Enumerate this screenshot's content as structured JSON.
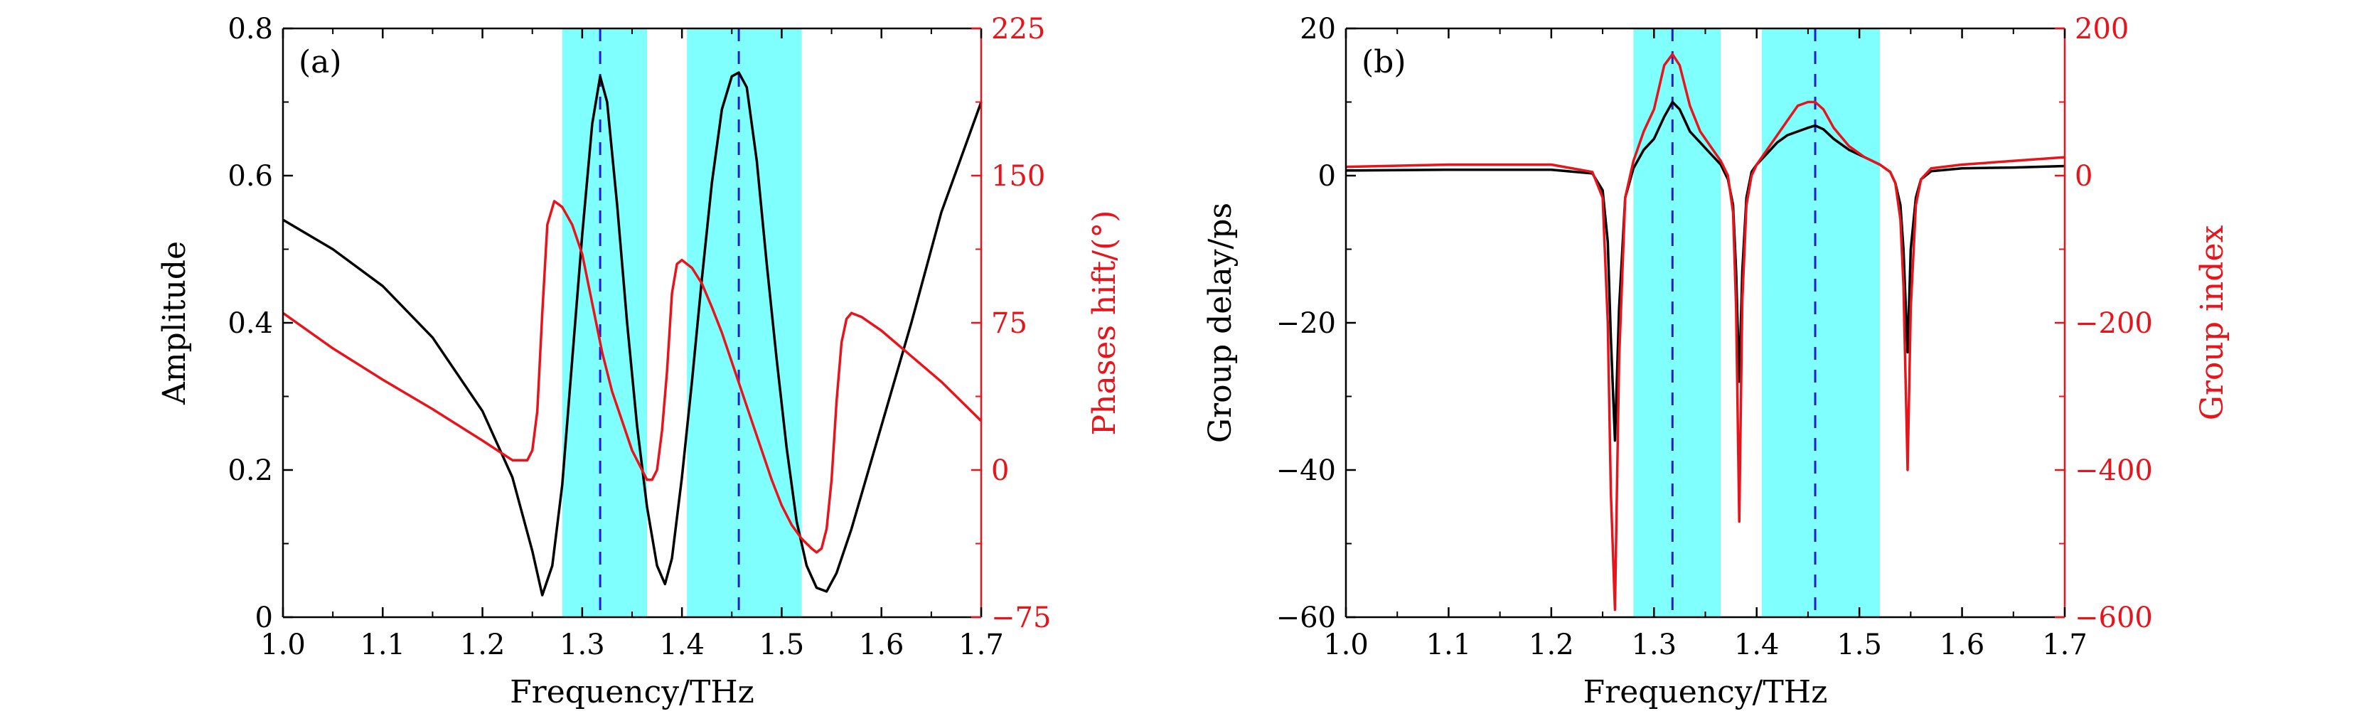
{
  "chart_data": [
    {
      "type": "line",
      "panel_label": "(a)",
      "xlabel": "Frequency/THz",
      "ylabel": "Amplitude",
      "y2label": "Phases hift/(°)",
      "xlim": [
        1.0,
        1.7
      ],
      "ylim": [
        0,
        0.8
      ],
      "y2lim": [
        -75,
        225
      ],
      "xticks": [
        "1.0",
        "1.1",
        "1.2",
        "1.3",
        "1.4",
        "1.5",
        "1.6",
        "1.7"
      ],
      "yticks": [
        "0",
        "0.2",
        "0.4",
        "0.6",
        "0.8"
      ],
      "y2ticks": [
        "−75",
        "0",
        "75",
        "150",
        "225"
      ],
      "bands": [
        [
          1.28,
          1.365
        ],
        [
          1.405,
          1.52
        ]
      ],
      "vlines": [
        1.318,
        1.457
      ],
      "colors": {
        "left": "#000000",
        "right": "#e8141b",
        "band": "#80ffff",
        "vline": "#1f1fd0"
      },
      "series": [
        {
          "axis": "left",
          "color": "#000000",
          "x": [
            1.0,
            1.05,
            1.1,
            1.15,
            1.2,
            1.23,
            1.25,
            1.26,
            1.27,
            1.28,
            1.29,
            1.3,
            1.31,
            1.318,
            1.325,
            1.335,
            1.345,
            1.355,
            1.365,
            1.375,
            1.383,
            1.39,
            1.4,
            1.41,
            1.42,
            1.43,
            1.44,
            1.45,
            1.457,
            1.465,
            1.475,
            1.485,
            1.495,
            1.505,
            1.515,
            1.525,
            1.535,
            1.545,
            1.555,
            1.57,
            1.6,
            1.63,
            1.66,
            1.7
          ],
          "y": [
            0.54,
            0.5,
            0.45,
            0.38,
            0.28,
            0.19,
            0.09,
            0.03,
            0.07,
            0.18,
            0.35,
            0.52,
            0.67,
            0.735,
            0.7,
            0.56,
            0.4,
            0.26,
            0.15,
            0.07,
            0.045,
            0.08,
            0.19,
            0.32,
            0.46,
            0.59,
            0.69,
            0.735,
            0.74,
            0.72,
            0.62,
            0.48,
            0.35,
            0.23,
            0.13,
            0.07,
            0.04,
            0.035,
            0.06,
            0.12,
            0.26,
            0.4,
            0.55,
            0.7
          ]
        },
        {
          "axis": "right",
          "color": "#e8141b",
          "x": [
            1.0,
            1.05,
            1.1,
            1.15,
            1.2,
            1.23,
            1.245,
            1.25,
            1.255,
            1.26,
            1.265,
            1.272,
            1.28,
            1.29,
            1.3,
            1.31,
            1.32,
            1.33,
            1.34,
            1.35,
            1.36,
            1.365,
            1.37,
            1.375,
            1.38,
            1.385,
            1.39,
            1.395,
            1.4,
            1.41,
            1.42,
            1.43,
            1.44,
            1.45,
            1.46,
            1.47,
            1.48,
            1.49,
            1.5,
            1.51,
            1.52,
            1.53,
            1.535,
            1.54,
            1.545,
            1.55,
            1.555,
            1.56,
            1.565,
            1.57,
            1.58,
            1.6,
            1.63,
            1.66,
            1.7
          ],
          "y": [
            80,
            62,
            46,
            31,
            15,
            5,
            5,
            10,
            30,
            80,
            125,
            137,
            134,
            125,
            110,
            85,
            60,
            40,
            25,
            10,
            0,
            -5,
            -5,
            0,
            20,
            50,
            90,
            105,
            107,
            103,
            95,
            83,
            70,
            55,
            40,
            25,
            10,
            -5,
            -18,
            -28,
            -35,
            -40,
            -42,
            -40,
            -30,
            -5,
            35,
            65,
            77,
            80,
            78,
            71,
            58,
            45,
            25
          ]
        }
      ]
    },
    {
      "type": "line",
      "panel_label": "(b)",
      "xlabel": "Frequency/THz",
      "ylabel": "Group delay/ps",
      "y2label": "Group index",
      "xlim": [
        1.0,
        1.7
      ],
      "ylim": [
        -60,
        20
      ],
      "y2lim": [
        -600,
        200
      ],
      "xticks": [
        "1.0",
        "1.1",
        "1.2",
        "1.3",
        "1.4",
        "1.5",
        "1.6",
        "1.7"
      ],
      "yticks": [
        "−60",
        "−40",
        "−20",
        "0",
        "20"
      ],
      "y2ticks": [
        "−600",
        "−400",
        "−200",
        "0",
        "200"
      ],
      "bands": [
        [
          1.28,
          1.365
        ],
        [
          1.405,
          1.52
        ]
      ],
      "vlines": [
        1.318,
        1.457
      ],
      "colors": {
        "left": "#000000",
        "right": "#e8141b",
        "band": "#80ffff",
        "vline": "#1f1fd0"
      },
      "series": [
        {
          "axis": "left",
          "color": "#000000",
          "x": [
            1.0,
            1.1,
            1.2,
            1.24,
            1.25,
            1.255,
            1.258,
            1.262,
            1.266,
            1.272,
            1.28,
            1.29,
            1.3,
            1.31,
            1.318,
            1.325,
            1.335,
            1.345,
            1.355,
            1.365,
            1.372,
            1.377,
            1.38,
            1.383,
            1.386,
            1.39,
            1.395,
            1.4,
            1.41,
            1.42,
            1.43,
            1.44,
            1.45,
            1.457,
            1.465,
            1.475,
            1.49,
            1.505,
            1.52,
            1.53,
            1.535,
            1.54,
            1.543,
            1.547,
            1.55,
            1.555,
            1.56,
            1.57,
            1.6,
            1.65,
            1.7
          ],
          "y": [
            0.7,
            0.8,
            0.8,
            0.3,
            -2,
            -9,
            -22,
            -36,
            -18,
            -3,
            1,
            3.5,
            5,
            8,
            10,
            9,
            6,
            4.5,
            3,
            1.5,
            -0.5,
            -4,
            -13,
            -28,
            -13,
            -3,
            0.5,
            1.5,
            3,
            4.5,
            5.5,
            6,
            6.5,
            6.8,
            6.3,
            5,
            3.5,
            2.5,
            1.5,
            0.5,
            -1,
            -4,
            -10,
            -24,
            -10,
            -3,
            -0.5,
            0.6,
            1,
            1.1,
            1.3
          ]
        },
        {
          "axis": "right",
          "color": "#e8141b",
          "x": [
            1.0,
            1.1,
            1.2,
            1.24,
            1.25,
            1.255,
            1.258,
            1.262,
            1.266,
            1.272,
            1.28,
            1.29,
            1.3,
            1.31,
            1.318,
            1.325,
            1.335,
            1.345,
            1.355,
            1.365,
            1.372,
            1.377,
            1.38,
            1.383,
            1.386,
            1.39,
            1.395,
            1.4,
            1.41,
            1.42,
            1.43,
            1.44,
            1.45,
            1.457,
            1.465,
            1.475,
            1.49,
            1.505,
            1.52,
            1.53,
            1.535,
            1.54,
            1.543,
            1.547,
            1.55,
            1.555,
            1.56,
            1.57,
            1.6,
            1.65,
            1.7
          ],
          "y": [
            12,
            15,
            15,
            5,
            -30,
            -200,
            -430,
            -590,
            -250,
            -30,
            20,
            60,
            90,
            150,
            165,
            150,
            95,
            60,
            40,
            20,
            0,
            -50,
            -180,
            -470,
            -170,
            -40,
            0,
            15,
            35,
            55,
            75,
            95,
            100,
            100,
            90,
            65,
            40,
            25,
            15,
            5,
            -10,
            -60,
            -150,
            -400,
            -180,
            -40,
            -5,
            10,
            15,
            20,
            25
          ]
        }
      ]
    }
  ]
}
